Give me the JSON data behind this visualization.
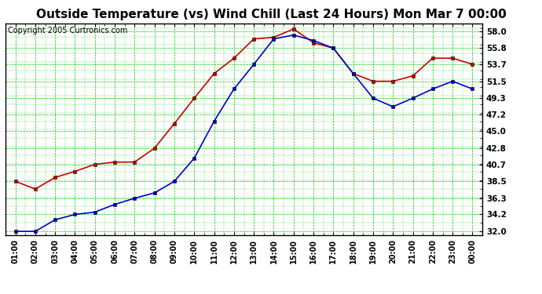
{
  "title": "Outside Temperature (vs) Wind Chill (Last 24 Hours) Mon Mar 7 00:00",
  "copyright": "Copyright 2005 Curtronics.com",
  "x_labels": [
    "01:00",
    "02:00",
    "03:00",
    "04:00",
    "05:00",
    "06:00",
    "07:00",
    "08:00",
    "09:00",
    "10:00",
    "11:00",
    "12:00",
    "13:00",
    "14:00",
    "15:00",
    "16:00",
    "17:00",
    "18:00",
    "19:00",
    "20:00",
    "21:00",
    "22:00",
    "23:00",
    "00:00"
  ],
  "outside_temp": [
    38.5,
    37.5,
    39.0,
    39.8,
    40.7,
    41.0,
    41.0,
    42.8,
    46.0,
    49.3,
    52.5,
    54.5,
    57.0,
    57.2,
    58.3,
    56.5,
    55.8,
    52.5,
    51.5,
    51.5,
    52.2,
    54.5,
    54.5,
    53.7
  ],
  "wind_chill": [
    32.0,
    32.0,
    33.5,
    34.2,
    34.5,
    35.5,
    36.3,
    37.0,
    38.5,
    41.5,
    46.3,
    50.5,
    53.7,
    57.0,
    57.5,
    56.8,
    55.8,
    52.5,
    49.3,
    48.2,
    49.3,
    50.5,
    51.5,
    50.5
  ],
  "temp_color": "#cc0000",
  "chill_color": "#0000cc",
  "bg_color": "#ffffff",
  "plot_bg": "#ffffff",
  "grid_color": "#00cc00",
  "y_ticks": [
    32.0,
    34.2,
    36.3,
    38.5,
    40.7,
    42.8,
    45.0,
    47.2,
    49.3,
    51.5,
    53.7,
    55.8,
    58.0
  ],
  "ylim": [
    31.5,
    59.0
  ],
  "title_fontsize": 11,
  "copyright_fontsize": 7,
  "marker": "s",
  "marker_size": 2.5,
  "line_width": 1.2
}
